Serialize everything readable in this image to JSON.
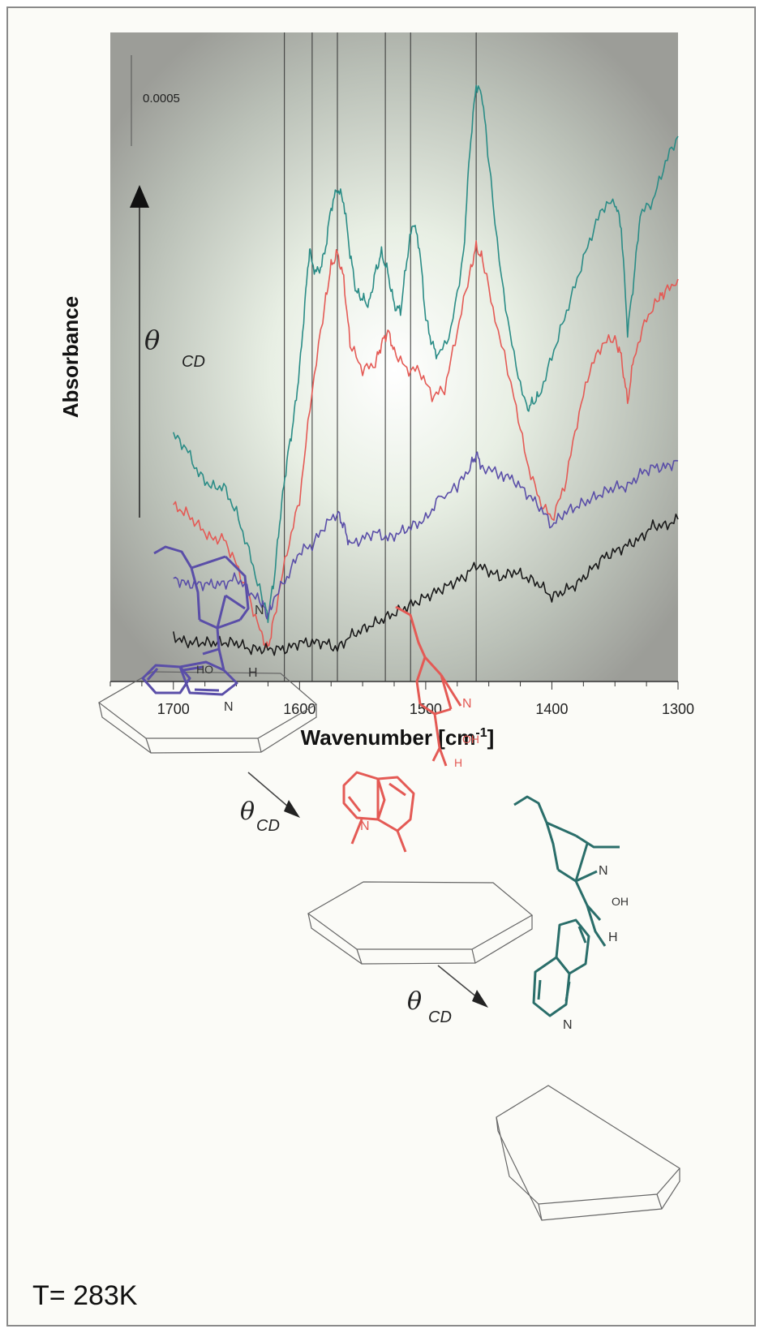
{
  "chart_data": {
    "type": "line",
    "xlabel_main": "Wavenumber [cm",
    "xlabel_sup": "-1",
    "xlabel_tail": "]",
    "ylabel": "Absorbance",
    "xlim": [
      1750,
      1300
    ],
    "x_reversed": true,
    "xticks": [
      1700,
      1600,
      1500,
      1400,
      1300
    ],
    "scale_bar_label": "0.0005",
    "arrow_symbol": "θ",
    "arrow_subscript": "CD",
    "reference_lines": [
      1612,
      1590,
      1570,
      1532,
      1512,
      1460
    ],
    "series": [
      {
        "color": "#2a8c86",
        "points": [
          [
            1700,
            0.62
          ],
          [
            1690,
            0.64
          ],
          [
            1680,
            0.68
          ],
          [
            1670,
            0.7
          ],
          [
            1660,
            0.7
          ],
          [
            1650,
            0.74
          ],
          [
            1640,
            0.8
          ],
          [
            1630,
            0.87
          ],
          [
            1625,
            0.9
          ],
          [
            1620,
            0.84
          ],
          [
            1615,
            0.74
          ],
          [
            1610,
            0.66
          ],
          [
            1605,
            0.6
          ],
          [
            1600,
            0.52
          ],
          [
            1595,
            0.4
          ],
          [
            1592,
            0.33
          ],
          [
            1590,
            0.36
          ],
          [
            1585,
            0.37
          ],
          [
            1580,
            0.34
          ],
          [
            1575,
            0.27
          ],
          [
            1570,
            0.24
          ],
          [
            1565,
            0.26
          ],
          [
            1560,
            0.34
          ],
          [
            1555,
            0.4
          ],
          [
            1550,
            0.41
          ],
          [
            1545,
            0.42
          ],
          [
            1540,
            0.37
          ],
          [
            1535,
            0.34
          ],
          [
            1530,
            0.37
          ],
          [
            1525,
            0.42
          ],
          [
            1520,
            0.43
          ],
          [
            1515,
            0.35
          ],
          [
            1510,
            0.29
          ],
          [
            1505,
            0.33
          ],
          [
            1500,
            0.44
          ],
          [
            1495,
            0.48
          ],
          [
            1490,
            0.5
          ],
          [
            1480,
            0.46
          ],
          [
            1470,
            0.34
          ],
          [
            1465,
            0.18
          ],
          [
            1460,
            0.08
          ],
          [
            1455,
            0.1
          ],
          [
            1450,
            0.2
          ],
          [
            1440,
            0.38
          ],
          [
            1430,
            0.5
          ],
          [
            1420,
            0.58
          ],
          [
            1415,
            0.57
          ],
          [
            1410,
            0.56
          ],
          [
            1400,
            0.5
          ],
          [
            1390,
            0.44
          ],
          [
            1380,
            0.38
          ],
          [
            1370,
            0.32
          ],
          [
            1360,
            0.27
          ],
          [
            1350,
            0.26
          ],
          [
            1345,
            0.3
          ],
          [
            1340,
            0.46
          ],
          [
            1335,
            0.38
          ],
          [
            1330,
            0.28
          ],
          [
            1320,
            0.26
          ],
          [
            1310,
            0.2
          ],
          [
            1300,
            0.16
          ]
        ]
      },
      {
        "color": "#e45a55",
        "points": [
          [
            1700,
            0.73
          ],
          [
            1690,
            0.74
          ],
          [
            1680,
            0.76
          ],
          [
            1670,
            0.78
          ],
          [
            1660,
            0.78
          ],
          [
            1650,
            0.82
          ],
          [
            1640,
            0.87
          ],
          [
            1630,
            0.93
          ],
          [
            1625,
            0.95
          ],
          [
            1620,
            0.9
          ],
          [
            1610,
            0.8
          ],
          [
            1600,
            0.72
          ],
          [
            1590,
            0.55
          ],
          [
            1580,
            0.42
          ],
          [
            1575,
            0.36
          ],
          [
            1570,
            0.34
          ],
          [
            1565,
            0.38
          ],
          [
            1560,
            0.48
          ],
          [
            1550,
            0.52
          ],
          [
            1540,
            0.51
          ],
          [
            1535,
            0.48
          ],
          [
            1530,
            0.46
          ],
          [
            1525,
            0.49
          ],
          [
            1515,
            0.52
          ],
          [
            1505,
            0.52
          ],
          [
            1495,
            0.56
          ],
          [
            1485,
            0.55
          ],
          [
            1475,
            0.46
          ],
          [
            1465,
            0.37
          ],
          [
            1460,
            0.33
          ],
          [
            1455,
            0.35
          ],
          [
            1445,
            0.44
          ],
          [
            1430,
            0.56
          ],
          [
            1420,
            0.66
          ],
          [
            1410,
            0.72
          ],
          [
            1400,
            0.75
          ],
          [
            1390,
            0.7
          ],
          [
            1380,
            0.6
          ],
          [
            1370,
            0.52
          ],
          [
            1360,
            0.48
          ],
          [
            1350,
            0.47
          ],
          [
            1345,
            0.5
          ],
          [
            1340,
            0.57
          ],
          [
            1335,
            0.5
          ],
          [
            1325,
            0.44
          ],
          [
            1315,
            0.41
          ],
          [
            1310,
            0.4
          ],
          [
            1300,
            0.38
          ]
        ]
      },
      {
        "color": "#5a4ea8",
        "points": [
          [
            1700,
            0.84
          ],
          [
            1690,
            0.85
          ],
          [
            1680,
            0.85
          ],
          [
            1670,
            0.85
          ],
          [
            1660,
            0.85
          ],
          [
            1650,
            0.84
          ],
          [
            1640,
            0.86
          ],
          [
            1630,
            0.88
          ],
          [
            1625,
            0.9
          ],
          [
            1620,
            0.87
          ],
          [
            1610,
            0.84
          ],
          [
            1600,
            0.8
          ],
          [
            1590,
            0.79
          ],
          [
            1580,
            0.76
          ],
          [
            1570,
            0.74
          ],
          [
            1565,
            0.76
          ],
          [
            1560,
            0.79
          ],
          [
            1550,
            0.78
          ],
          [
            1540,
            0.77
          ],
          [
            1530,
            0.78
          ],
          [
            1520,
            0.77
          ],
          [
            1510,
            0.76
          ],
          [
            1500,
            0.75
          ],
          [
            1490,
            0.72
          ],
          [
            1475,
            0.7
          ],
          [
            1465,
            0.67
          ],
          [
            1460,
            0.65
          ],
          [
            1455,
            0.67
          ],
          [
            1440,
            0.68
          ],
          [
            1430,
            0.69
          ],
          [
            1420,
            0.71
          ],
          [
            1410,
            0.73
          ],
          [
            1400,
            0.76
          ],
          [
            1390,
            0.74
          ],
          [
            1380,
            0.73
          ],
          [
            1370,
            0.72
          ],
          [
            1360,
            0.71
          ],
          [
            1350,
            0.7
          ],
          [
            1340,
            0.7
          ],
          [
            1330,
            0.68
          ],
          [
            1320,
            0.67
          ],
          [
            1310,
            0.67
          ],
          [
            1300,
            0.66
          ]
        ]
      },
      {
        "color": "#1a1a1a",
        "points": [
          [
            1700,
            0.93
          ],
          [
            1690,
            0.94
          ],
          [
            1680,
            0.94
          ],
          [
            1670,
            0.94
          ],
          [
            1660,
            0.94
          ],
          [
            1650,
            0.94
          ],
          [
            1640,
            0.95
          ],
          [
            1630,
            0.95
          ],
          [
            1620,
            0.95
          ],
          [
            1610,
            0.95
          ],
          [
            1600,
            0.94
          ],
          [
            1590,
            0.94
          ],
          [
            1580,
            0.94
          ],
          [
            1570,
            0.95
          ],
          [
            1560,
            0.93
          ],
          [
            1550,
            0.92
          ],
          [
            1540,
            0.91
          ],
          [
            1530,
            0.9
          ],
          [
            1520,
            0.89
          ],
          [
            1510,
            0.88
          ],
          [
            1500,
            0.87
          ],
          [
            1490,
            0.86
          ],
          [
            1480,
            0.85
          ],
          [
            1470,
            0.84
          ],
          [
            1460,
            0.82
          ],
          [
            1450,
            0.83
          ],
          [
            1440,
            0.84
          ],
          [
            1430,
            0.83
          ],
          [
            1420,
            0.84
          ],
          [
            1410,
            0.85
          ],
          [
            1400,
            0.87
          ],
          [
            1390,
            0.86
          ],
          [
            1380,
            0.85
          ],
          [
            1370,
            0.83
          ],
          [
            1360,
            0.81
          ],
          [
            1350,
            0.8
          ],
          [
            1340,
            0.79
          ],
          [
            1330,
            0.78
          ],
          [
            1320,
            0.76
          ],
          [
            1310,
            0.76
          ],
          [
            1300,
            0.75
          ]
        ]
      }
    ]
  },
  "scheme": {
    "atom_N": "N",
    "atom_HO": "HO",
    "atom_OH": "OH",
    "atom_H": "H",
    "arrow_symbol": "θ",
    "arrow_subscript": "CD",
    "colors": {
      "first": "#5a4ea8",
      "second": "#e45a55",
      "third": "#2a6e6a",
      "surface": "#666666"
    }
  },
  "temperature_label": "T= 283K"
}
